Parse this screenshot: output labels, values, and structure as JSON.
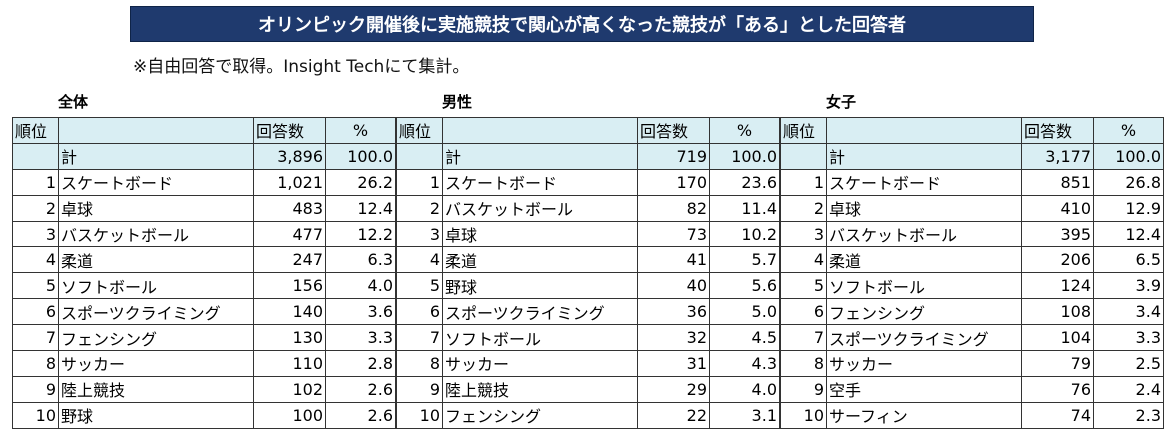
{
  "title": "オリンピック開催後に実施競技で関心が高くなった競技が「ある」とした回答者",
  "note": "※自由回答で取得。Insight Techにて集計。",
  "headers": {
    "rank": "順位",
    "name": "",
    "count": "回答数",
    "pct": "%"
  },
  "tables": [
    {
      "title": "全体",
      "total": {
        "label": "計",
        "count": "3,896",
        "pct": "100.0"
      },
      "rows": [
        {
          "rank": "1",
          "name": "スケートボード",
          "count": "1,021",
          "pct": "26.2"
        },
        {
          "rank": "2",
          "name": "卓球",
          "count": "483",
          "pct": "12.4"
        },
        {
          "rank": "3",
          "name": "バスケットボール",
          "count": "477",
          "pct": "12.2"
        },
        {
          "rank": "4",
          "name": "柔道",
          "count": "247",
          "pct": "6.3"
        },
        {
          "rank": "5",
          "name": "ソフトボール",
          "count": "156",
          "pct": "4.0"
        },
        {
          "rank": "6",
          "name": "スポーツクライミング",
          "count": "140",
          "pct": "3.6"
        },
        {
          "rank": "7",
          "name": "フェンシング",
          "count": "130",
          "pct": "3.3"
        },
        {
          "rank": "8",
          "name": "サッカー",
          "count": "110",
          "pct": "2.8"
        },
        {
          "rank": "9",
          "name": "陸上競技",
          "count": "102",
          "pct": "2.6"
        },
        {
          "rank": "10",
          "name": "野球",
          "count": "100",
          "pct": "2.6"
        }
      ]
    },
    {
      "title": "男性",
      "total": {
        "label": "計",
        "count": "719",
        "pct": "100.0"
      },
      "rows": [
        {
          "rank": "1",
          "name": "スケートボード",
          "count": "170",
          "pct": "23.6"
        },
        {
          "rank": "2",
          "name": "バスケットボール",
          "count": "82",
          "pct": "11.4"
        },
        {
          "rank": "3",
          "name": "卓球",
          "count": "73",
          "pct": "10.2"
        },
        {
          "rank": "4",
          "name": "柔道",
          "count": "41",
          "pct": "5.7"
        },
        {
          "rank": "5",
          "name": "野球",
          "count": "40",
          "pct": "5.6"
        },
        {
          "rank": "6",
          "name": "スポーツクライミング",
          "count": "36",
          "pct": "5.0"
        },
        {
          "rank": "7",
          "name": "ソフトボール",
          "count": "32",
          "pct": "4.5"
        },
        {
          "rank": "8",
          "name": "サッカー",
          "count": "31",
          "pct": "4.3"
        },
        {
          "rank": "9",
          "name": "陸上競技",
          "count": "29",
          "pct": "4.0"
        },
        {
          "rank": "10",
          "name": "フェンシング",
          "count": "22",
          "pct": "3.1"
        }
      ]
    },
    {
      "title": "女子",
      "total": {
        "label": "計",
        "count": "3,177",
        "pct": "100.0"
      },
      "rows": [
        {
          "rank": "1",
          "name": "スケートボード",
          "count": "851",
          "pct": "26.8"
        },
        {
          "rank": "2",
          "name": "卓球",
          "count": "410",
          "pct": "12.9"
        },
        {
          "rank": "3",
          "name": "バスケットボール",
          "count": "395",
          "pct": "12.4"
        },
        {
          "rank": "4",
          "name": "柔道",
          "count": "206",
          "pct": "6.5"
        },
        {
          "rank": "5",
          "name": "ソフトボール",
          "count": "124",
          "pct": "3.9"
        },
        {
          "rank": "6",
          "name": "フェンシング",
          "count": "108",
          "pct": "3.4"
        },
        {
          "rank": "7",
          "name": "スポーツクライミング",
          "count": "104",
          "pct": "3.3"
        },
        {
          "rank": "8",
          "name": "サッカー",
          "count": "79",
          "pct": "2.5"
        },
        {
          "rank": "9",
          "name": "空手",
          "count": "76",
          "pct": "2.4"
        },
        {
          "rank": "10",
          "name": "サーフィン",
          "count": "74",
          "pct": "2.3"
        }
      ]
    }
  ]
}
